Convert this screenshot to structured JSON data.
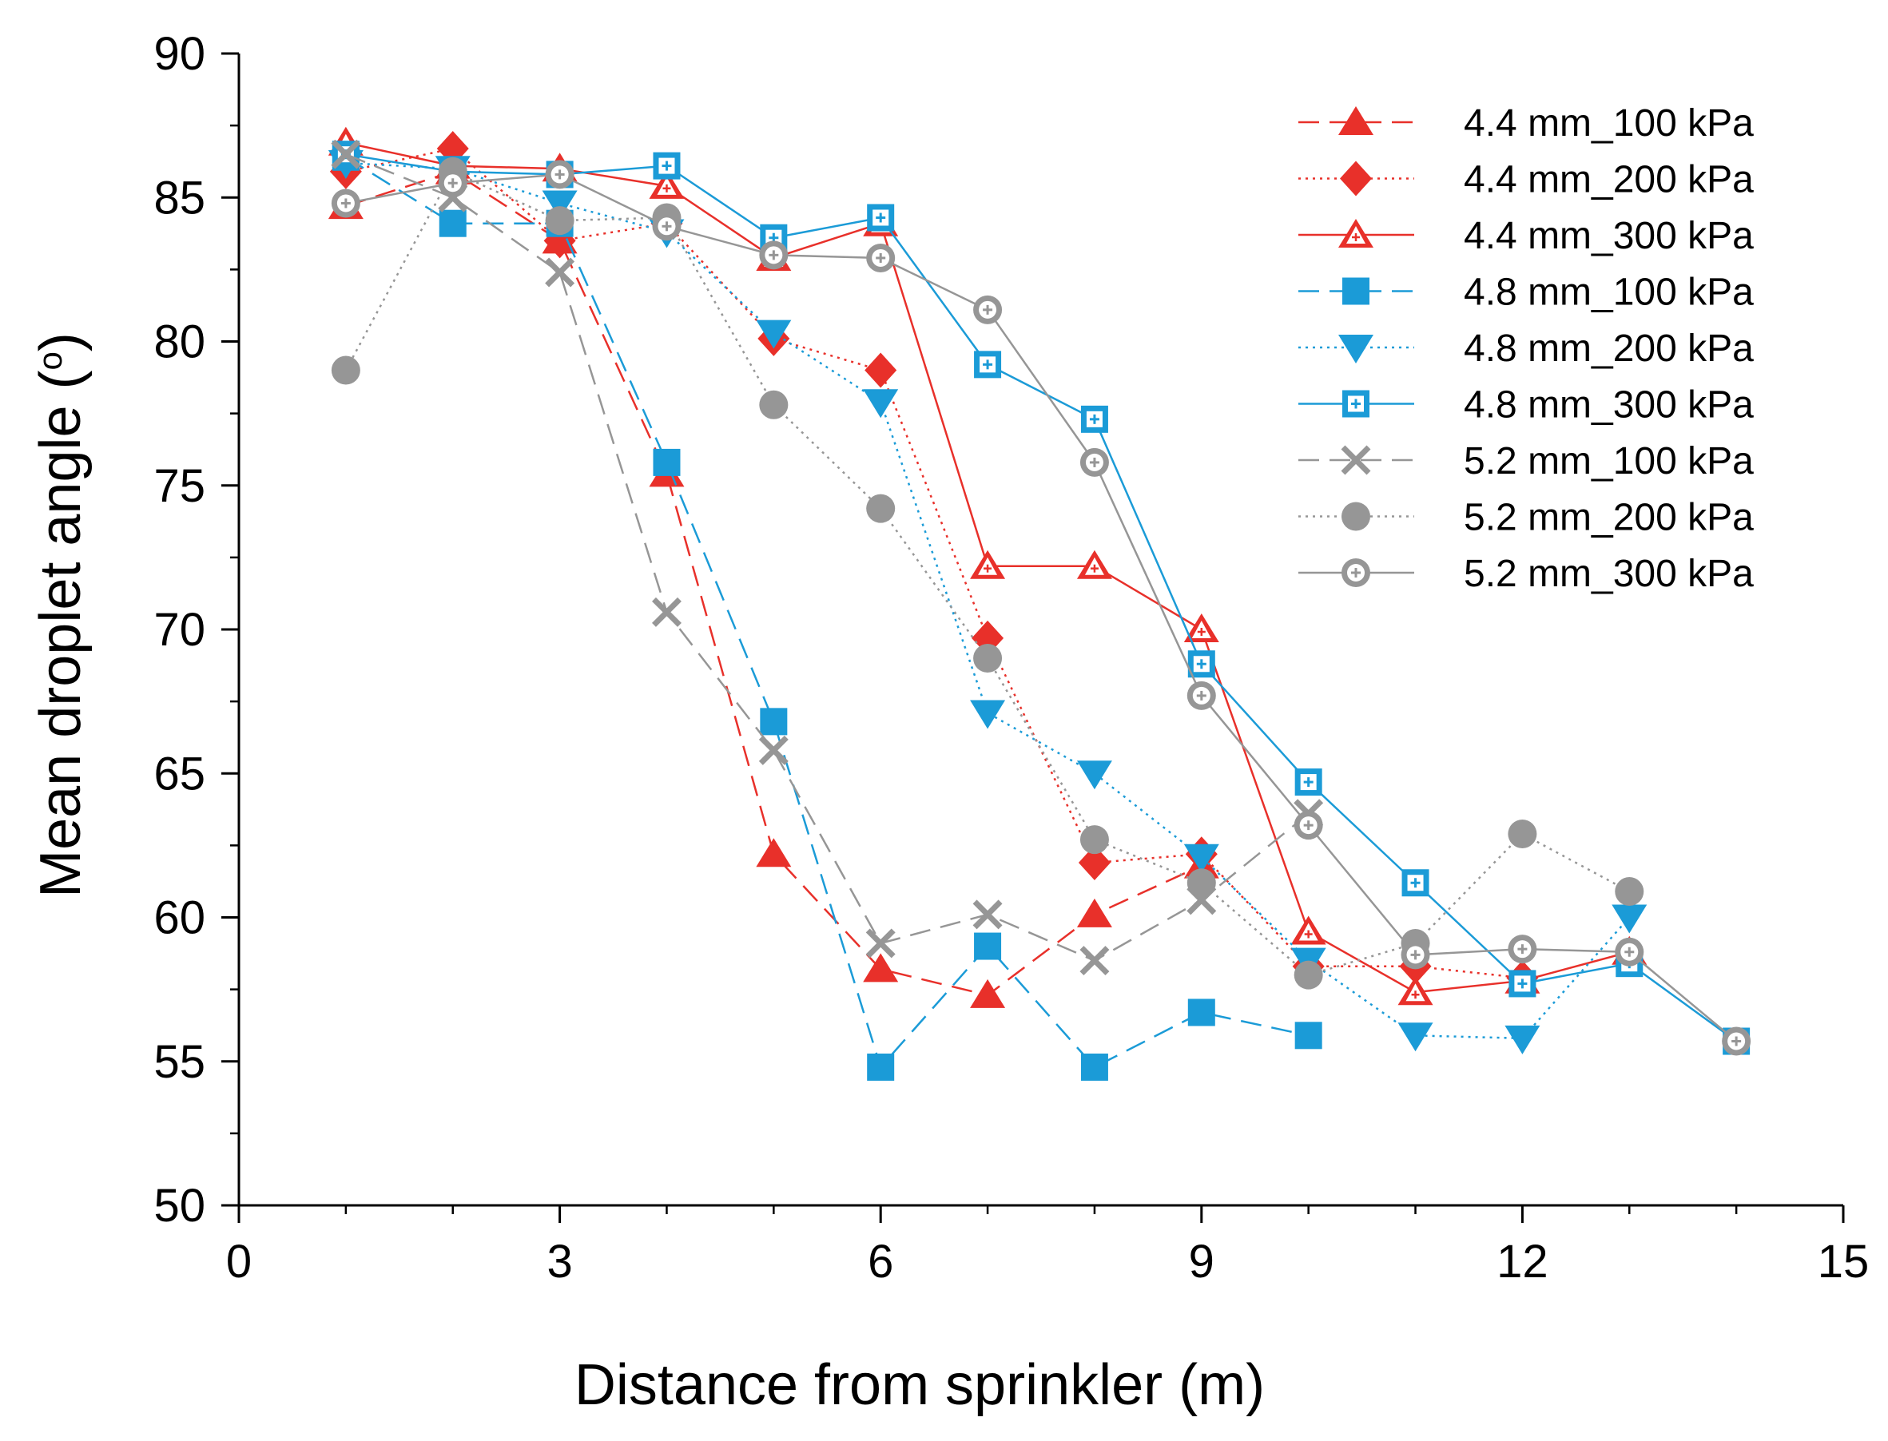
{
  "chart_data": {
    "type": "line",
    "title": "",
    "xlabel": "Distance from sprinkler (m)",
    "ylabel": "Mean droplet angle (",
    "ylabel_degree": "o",
    "ylabel_close": ")",
    "xlim": [
      0,
      15
    ],
    "ylim": [
      50,
      90
    ],
    "xticks": [
      0,
      3,
      6,
      9,
      12,
      15
    ],
    "yticks": [
      50,
      55,
      60,
      65,
      70,
      75,
      80,
      85,
      90
    ],
    "grid": false,
    "legend_position": "top-right",
    "x": [
      1,
      2,
      3,
      4,
      5,
      6,
      7,
      8,
      9,
      10,
      11,
      12,
      13,
      14
    ],
    "series": [
      {
        "name": "4.4 mm_100 kPa",
        "color": "#e8302a",
        "marker": "triangle-up",
        "line": "dashed",
        "values": [
          84.7,
          85.9,
          83.5,
          75.4,
          62.2,
          58.2,
          57.3,
          60.1,
          61.8,
          null,
          null,
          null,
          null,
          null
        ]
      },
      {
        "name": "4.4 mm_200 kPa",
        "color": "#e8302a",
        "marker": "diamond",
        "line": "dotted",
        "values": [
          85.9,
          86.7,
          83.5,
          84.1,
          80.1,
          79.0,
          69.7,
          61.9,
          62.2,
          58.3,
          58.3,
          57.9,
          null,
          null
        ]
      },
      {
        "name": "4.4 mm_300 kPa",
        "color": "#e8302a",
        "marker": "open-triangle",
        "line": "solid",
        "values": [
          86.9,
          86.1,
          86.0,
          85.4,
          82.9,
          84.1,
          72.2,
          72.2,
          70.0,
          59.5,
          57.4,
          57.8,
          58.8,
          null
        ]
      },
      {
        "name": "4.8 mm_100 kPa",
        "color": "#1b9bd7",
        "marker": "square",
        "line": "dashed",
        "values": [
          86.4,
          84.1,
          84.1,
          75.8,
          66.8,
          54.8,
          59.0,
          54.8,
          56.7,
          55.9,
          null,
          null,
          null,
          null
        ]
      },
      {
        "name": "4.8 mm_200 kPa",
        "color": "#1b9bd7",
        "marker": "triangle-down",
        "line": "dotted",
        "values": [
          86.2,
          86.0,
          84.8,
          83.8,
          80.3,
          77.9,
          67.1,
          65.0,
          62.1,
          58.5,
          55.9,
          55.8,
          60.0,
          null
        ]
      },
      {
        "name": "4.8 mm_300 kPa",
        "color": "#1b9bd7",
        "marker": "open-square",
        "line": "solid",
        "values": [
          86.5,
          85.9,
          85.8,
          86.1,
          83.6,
          84.3,
          79.2,
          77.3,
          68.8,
          64.7,
          61.2,
          57.7,
          58.4,
          55.7
        ]
      },
      {
        "name": "5.2 mm_100 kPa",
        "color": "#969696",
        "marker": "x",
        "line": "dashed",
        "values": [
          86.5,
          85.0,
          82.4,
          70.6,
          65.8,
          59.1,
          60.1,
          58.5,
          60.6,
          63.6,
          null,
          null,
          null,
          null
        ]
      },
      {
        "name": "5.2 mm_200 kPa",
        "color": "#969696",
        "marker": "circle",
        "line": "dotted",
        "values": [
          79.0,
          85.9,
          84.2,
          84.3,
          77.8,
          74.2,
          69.0,
          62.7,
          61.2,
          58.0,
          59.1,
          62.9,
          60.9,
          null
        ]
      },
      {
        "name": "5.2 mm_300 kPa",
        "color": "#969696",
        "marker": "open-circle",
        "line": "solid",
        "values": [
          84.8,
          85.5,
          85.8,
          84.0,
          83.0,
          82.9,
          81.1,
          75.8,
          67.7,
          63.2,
          58.7,
          58.9,
          58.8,
          55.7
        ]
      }
    ]
  }
}
